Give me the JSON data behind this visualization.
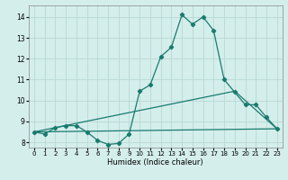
{
  "xlabel": "Humidex (Indice chaleur)",
  "xlim": [
    -0.5,
    23.5
  ],
  "ylim": [
    7.75,
    14.55
  ],
  "xticks": [
    0,
    1,
    2,
    3,
    4,
    5,
    6,
    7,
    8,
    9,
    10,
    11,
    12,
    13,
    14,
    15,
    16,
    17,
    18,
    19,
    20,
    21,
    22,
    23
  ],
  "yticks": [
    8,
    9,
    10,
    11,
    12,
    13,
    14
  ],
  "bg_color": "#d4eeec",
  "grid_color": "#b8d8d4",
  "line_color": "#1a7a6e",
  "curve1_x": [
    0,
    1,
    2,
    3,
    4,
    5,
    6,
    7,
    8,
    9,
    10,
    11,
    12,
    13,
    14,
    15,
    16,
    17,
    18,
    19,
    20,
    21,
    22,
    23
  ],
  "curve1_y": [
    8.5,
    8.4,
    8.7,
    8.8,
    8.8,
    8.5,
    8.1,
    7.9,
    7.95,
    8.4,
    10.45,
    10.75,
    12.1,
    12.55,
    14.1,
    13.65,
    14.0,
    13.35,
    11.0,
    10.4,
    9.8,
    9.8,
    9.2,
    8.65
  ],
  "curve2_x": [
    0,
    23
  ],
  "curve2_y": [
    8.5,
    8.65
  ],
  "curve3_x": [
    0,
    19,
    23
  ],
  "curve3_y": [
    8.5,
    10.45,
    8.65
  ]
}
